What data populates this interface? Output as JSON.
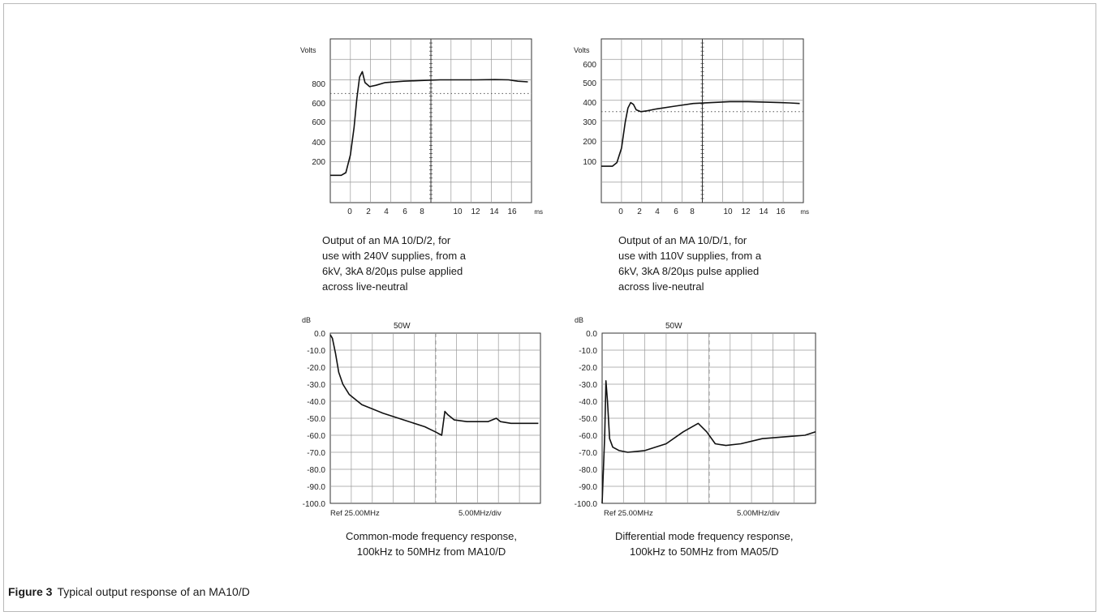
{
  "figure": {
    "label": "Figure 3",
    "text": "Typical output response of an MA10/D"
  },
  "captions": [
    [
      "Output of an MA 10/D/2, for",
      "use with 240V supplies, from a",
      "6kV, 3kA 8/20µs pulse applied",
      "across live-neutral"
    ],
    [
      "Output of an MA 10/D/1, for",
      "use with 110V supplies, from a",
      "6kV, 3kA 8/20µs pulse applied",
      "across live-neutral"
    ],
    [
      "Common-mode frequency response,",
      "100kHz to 50MHz from MA10/D"
    ],
    [
      "Differential mode frequency response,",
      "100kHz to 50MHz from MA05/D"
    ]
  ],
  "chart_data": [
    {
      "type": "line",
      "ylabel": "Volts",
      "xlabel": "ms",
      "yticks": [
        "800",
        "600",
        "600",
        "400",
        "200"
      ],
      "xticks": [
        "0",
        "2",
        "4",
        "6",
        "8",
        "10",
        "12",
        "14",
        "16"
      ],
      "xlim": [
        -2,
        20
      ],
      "ylim": [
        -200,
        1000
      ],
      "reference_level": 600,
      "series": [
        {
          "x": [
            -2,
            -0.8,
            -0.3,
            0.2,
            0.6,
            0.9,
            1.2,
            1.5,
            1.8,
            2.3,
            3,
            4,
            6,
            8,
            10,
            12,
            14,
            16,
            17.5,
            18.5,
            19.6
          ],
          "values": [
            0,
            0,
            20,
            150,
            350,
            560,
            720,
            760,
            680,
            650,
            660,
            680,
            690,
            695,
            700,
            700,
            700,
            702,
            700,
            690,
            685
          ]
        }
      ]
    },
    {
      "type": "line",
      "ylabel": "Volts",
      "xlabel": "ms",
      "yticks": [
        "600",
        "500",
        "400",
        "300",
        "200",
        "100"
      ],
      "xticks": [
        "0",
        "2",
        "4",
        "6",
        "8",
        "10",
        "12",
        "14",
        "16"
      ],
      "xlim": [
        -2,
        20
      ],
      "ylim": [
        -200,
        700
      ],
      "reference_level": 300,
      "series": [
        {
          "x": [
            -2,
            -0.8,
            -0.3,
            0.2,
            0.6,
            0.9,
            1.2,
            1.5,
            1.8,
            2.3,
            3,
            4,
            6,
            8,
            10,
            12,
            14,
            16,
            17.5,
            18.5,
            19.6
          ],
          "values": [
            0,
            0,
            20,
            100,
            240,
            320,
            350,
            340,
            310,
            300,
            305,
            315,
            330,
            345,
            350,
            355,
            355,
            352,
            350,
            348,
            345
          ]
        }
      ]
    },
    {
      "type": "line",
      "ylabel": "dB",
      "xlabel": "",
      "top_label": "50W",
      "yticks": [
        "0.0",
        "-10.0",
        "-20.0",
        "-30.0",
        "-40.0",
        "-50.0",
        "-60.0",
        "-70.0",
        "-80.0",
        "-90.0",
        "-100.0"
      ],
      "xticks": [
        "Ref 25.00MHz",
        "5.00MHz/div"
      ],
      "xlim": [
        0,
        10
      ],
      "ylim": [
        -100,
        0
      ],
      "series": [
        {
          "x": [
            0,
            0.1,
            0.25,
            0.4,
            0.6,
            0.9,
            1.5,
            2.5,
            3.5,
            4.5,
            5.0,
            5.3,
            5.45,
            5.6,
            5.9,
            6.5,
            7.5,
            7.9,
            8.1,
            8.6,
            9.2,
            9.9
          ],
          "values": [
            -1,
            -3,
            -12,
            -23,
            -30,
            -36,
            -42,
            -47,
            -51,
            -55,
            -58,
            -60,
            -46,
            -48,
            -51,
            -52,
            -52,
            -50,
            -52,
            -53,
            -53,
            -53
          ]
        }
      ]
    },
    {
      "type": "line",
      "ylabel": "dB",
      "xlabel": "",
      "top_label": "50W",
      "yticks": [
        "0.0",
        "-10.0",
        "-20.0",
        "-30.0",
        "-40.0",
        "-50.0",
        "-60.0",
        "-70.0",
        "-80.0",
        "-90.0",
        "-100.0"
      ],
      "xticks": [
        "Ref 25.00MHz",
        "5.00MHz/div"
      ],
      "xlim": [
        0,
        10
      ],
      "ylim": [
        -100,
        0
      ],
      "series": [
        {
          "x": [
            0,
            0.12,
            0.18,
            0.25,
            0.35,
            0.5,
            0.8,
            1.2,
            2,
            3,
            3.8,
            4.5,
            4.9,
            5.3,
            5.8,
            6.5,
            7.5,
            8.5,
            9.5,
            10
          ],
          "values": [
            -100,
            -60,
            -28,
            -40,
            -62,
            -67,
            -69,
            -70,
            -69,
            -65,
            -58,
            -53,
            -58,
            -65,
            -66,
            -65,
            -62,
            -61,
            -60,
            -58
          ]
        }
      ]
    }
  ]
}
